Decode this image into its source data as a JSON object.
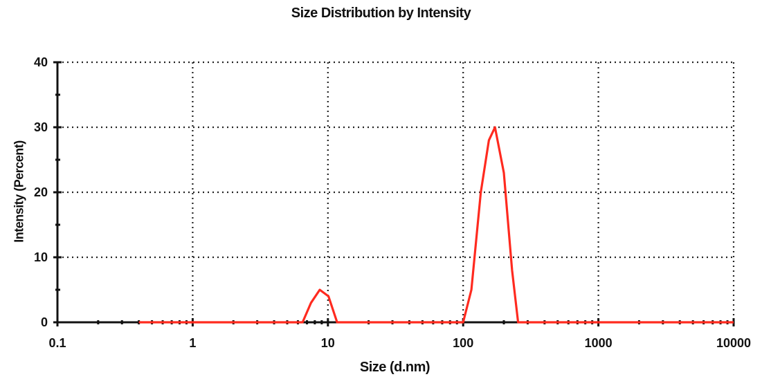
{
  "chart_data": {
    "type": "line",
    "title": "Size Distribution by Intensity",
    "xlabel": "Size (d.nm)",
    "ylabel": "Intensity (Percent)",
    "x_scale": "log",
    "xlim": [
      0.1,
      10000
    ],
    "ylim": [
      0,
      40
    ],
    "x_ticks": [
      0.1,
      1,
      10,
      100,
      1000,
      10000
    ],
    "x_tick_labels": [
      "0.1",
      "1",
      "10",
      "100",
      "1000",
      "10000"
    ],
    "y_ticks": [
      0,
      10,
      20,
      30,
      40
    ],
    "y_tick_labels": [
      "0",
      "10",
      "20",
      "30",
      "40"
    ],
    "grid": true,
    "series": [
      {
        "color": "#ff2a1f",
        "x": [
          0.4,
          6.5,
          7.5,
          8.7,
          10.1,
          11.7,
          100,
          115,
          135,
          155,
          172,
          200,
          230,
          255,
          10000
        ],
        "y": [
          0,
          0,
          3,
          5,
          4,
          0,
          0,
          5,
          20,
          28,
          30,
          23,
          8,
          0,
          0
        ]
      }
    ]
  }
}
